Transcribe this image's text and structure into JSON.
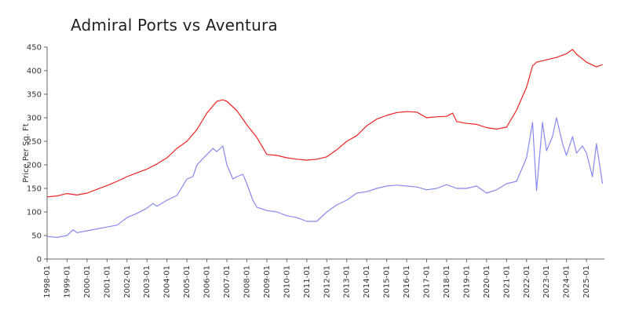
{
  "chart_data": {
    "type": "line",
    "title": "Admiral Ports vs Aventura",
    "xlabel": "",
    "ylabel": "Price Per Sq. Ft",
    "ylim": [
      0,
      450
    ],
    "yticks": [
      0,
      50,
      100,
      150,
      200,
      250,
      300,
      350,
      400,
      450
    ],
    "xlim": [
      1998.0,
      2025.9
    ],
    "x_tick_labels": [
      "1998-01",
      "1999-01",
      "2000-01",
      "2001-01",
      "2002-01",
      "2003-01",
      "2004-01",
      "2005-01",
      "2006-01",
      "2007-01",
      "2008-01",
      "2009-01",
      "2010-01",
      "2011-01",
      "2012-01",
      "2013-01",
      "2014-01",
      "2015-01",
      "2016-01",
      "2017-01",
      "2018-01",
      "2019-01",
      "2020-01",
      "2021-01",
      "2022-01",
      "2023-01",
      "2024-01",
      "2025-01"
    ],
    "grid": false,
    "series": [
      {
        "color": "#ee2222",
        "x": [
          1998.0,
          1998.5,
          1999.0,
          1999.5,
          2000.0,
          2000.5,
          2001.0,
          2001.5,
          2002.0,
          2002.5,
          2003.0,
          2003.5,
          2004.0,
          2004.5,
          2005.0,
          2005.5,
          2006.0,
          2006.5,
          2006.8,
          2007.0,
          2007.5,
          2008.0,
          2008.5,
          2009.0,
          2009.5,
          2010.0,
          2010.5,
          2011.0,
          2011.5,
          2012.0,
          2012.5,
          2013.0,
          2013.5,
          2014.0,
          2014.5,
          2015.0,
          2015.5,
          2016.0,
          2016.5,
          2017.0,
          2017.5,
          2018.0,
          2018.3,
          2018.5,
          2019.0,
          2019.5,
          2020.0,
          2020.5,
          2021.0,
          2021.5,
          2022.0,
          2022.3,
          2022.5,
          2023.0,
          2023.5,
          2024.0,
          2024.3,
          2024.5,
          2025.0,
          2025.3,
          2025.5,
          2025.8
        ],
        "values": [
          132,
          134,
          139,
          136,
          140,
          148,
          156,
          165,
          175,
          183,
          191,
          202,
          215,
          235,
          250,
          275,
          310,
          335,
          338,
          335,
          315,
          285,
          258,
          222,
          220,
          215,
          212,
          210,
          212,
          217,
          232,
          250,
          262,
          283,
          297,
          305,
          311,
          313,
          312,
          300,
          302,
          303,
          310,
          292,
          288,
          286,
          279,
          276,
          280,
          316,
          365,
          410,
          418,
          423,
          428,
          436,
          445,
          435,
          418,
          412,
          408,
          413
        ]
      },
      {
        "color": "#8888ee",
        "x": [
          1998.0,
          1998.5,
          1999.0,
          1999.3,
          1999.5,
          2000.0,
          2000.5,
          2001.0,
          2001.5,
          2002.0,
          2002.5,
          2003.0,
          2003.3,
          2003.5,
          2004.0,
          2004.5,
          2005.0,
          2005.3,
          2005.5,
          2006.0,
          2006.3,
          2006.5,
          2006.8,
          2007.0,
          2007.3,
          2007.5,
          2007.8,
          2008.0,
          2008.3,
          2008.5,
          2009.0,
          2009.5,
          2010.0,
          2010.5,
          2011.0,
          2011.5,
          2012.0,
          2012.5,
          2013.0,
          2013.5,
          2014.0,
          2014.5,
          2015.0,
          2015.5,
          2016.0,
          2016.5,
          2017.0,
          2017.5,
          2018.0,
          2018.5,
          2019.0,
          2019.5,
          2020.0,
          2020.5,
          2021.0,
          2021.5,
          2022.0,
          2022.3,
          2022.5,
          2022.8,
          2023.0,
          2023.3,
          2023.5,
          2023.8,
          2024.0,
          2024.3,
          2024.5,
          2024.8,
          2025.0,
          2025.3,
          2025.5,
          2025.8
        ],
        "values": [
          48,
          46,
          50,
          62,
          56,
          60,
          64,
          68,
          72,
          88,
          97,
          108,
          118,
          112,
          125,
          135,
          170,
          175,
          200,
          222,
          235,
          228,
          240,
          200,
          170,
          175,
          180,
          160,
          125,
          110,
          103,
          100,
          92,
          88,
          80,
          80,
          100,
          115,
          125,
          140,
          143,
          150,
          155,
          157,
          155,
          153,
          147,
          150,
          158,
          150,
          150,
          155,
          140,
          147,
          160,
          165,
          215,
          290,
          145,
          290,
          230,
          260,
          300,
          245,
          220,
          260,
          225,
          240,
          225,
          175,
          245,
          160
        ]
      }
    ]
  }
}
